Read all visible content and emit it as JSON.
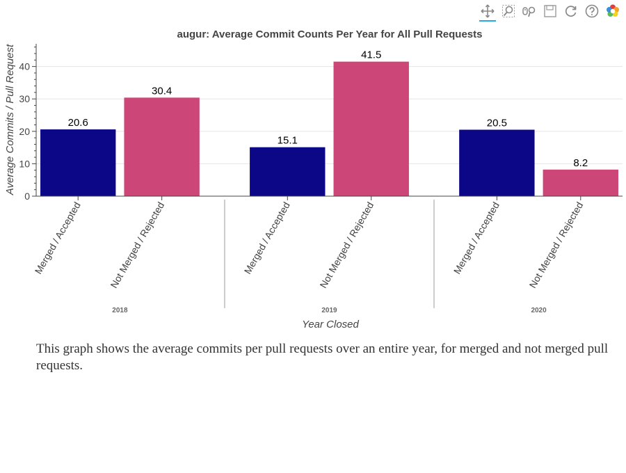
{
  "toolbar": {
    "tools": [
      {
        "name": "pan-icon",
        "active": true
      },
      {
        "name": "box-zoom-icon",
        "active": false
      },
      {
        "name": "wheel-zoom-icon",
        "active": false
      },
      {
        "name": "save-icon",
        "active": false
      },
      {
        "name": "reset-icon",
        "active": false
      },
      {
        "name": "help-icon",
        "active": false
      },
      {
        "name": "bokeh-logo-icon",
        "active": false
      }
    ]
  },
  "chart_data": {
    "type": "bar",
    "title": "augur: Average Commit Counts Per Year for All Pull Requests",
    "xlabel": "Year Closed",
    "ylabel": "Average Commits / Pull Request",
    "groups": [
      "2018",
      "2019",
      "2020"
    ],
    "subcategories": [
      "Merged / Accepted",
      "Not Merged / Rejected"
    ],
    "series": [
      {
        "name": "Merged / Accepted",
        "color": "#0c0786",
        "values": [
          20.6,
          15.1,
          20.5
        ]
      },
      {
        "name": "Not Merged / Rejected",
        "color": "#cc4677",
        "values": [
          30.4,
          41.5,
          8.2
        ]
      }
    ],
    "data_labels": [
      [
        "20.6",
        "30.4"
      ],
      [
        "15.1",
        "41.5"
      ],
      [
        "20.5",
        "8.2"
      ]
    ],
    "ylim": [
      0,
      47
    ],
    "yticks": [
      0,
      10,
      20,
      30,
      40
    ],
    "grid": true,
    "legend": "none"
  },
  "caption": "This graph shows the average commits per pull requests over an entire year, for merged and not merged pull requests."
}
